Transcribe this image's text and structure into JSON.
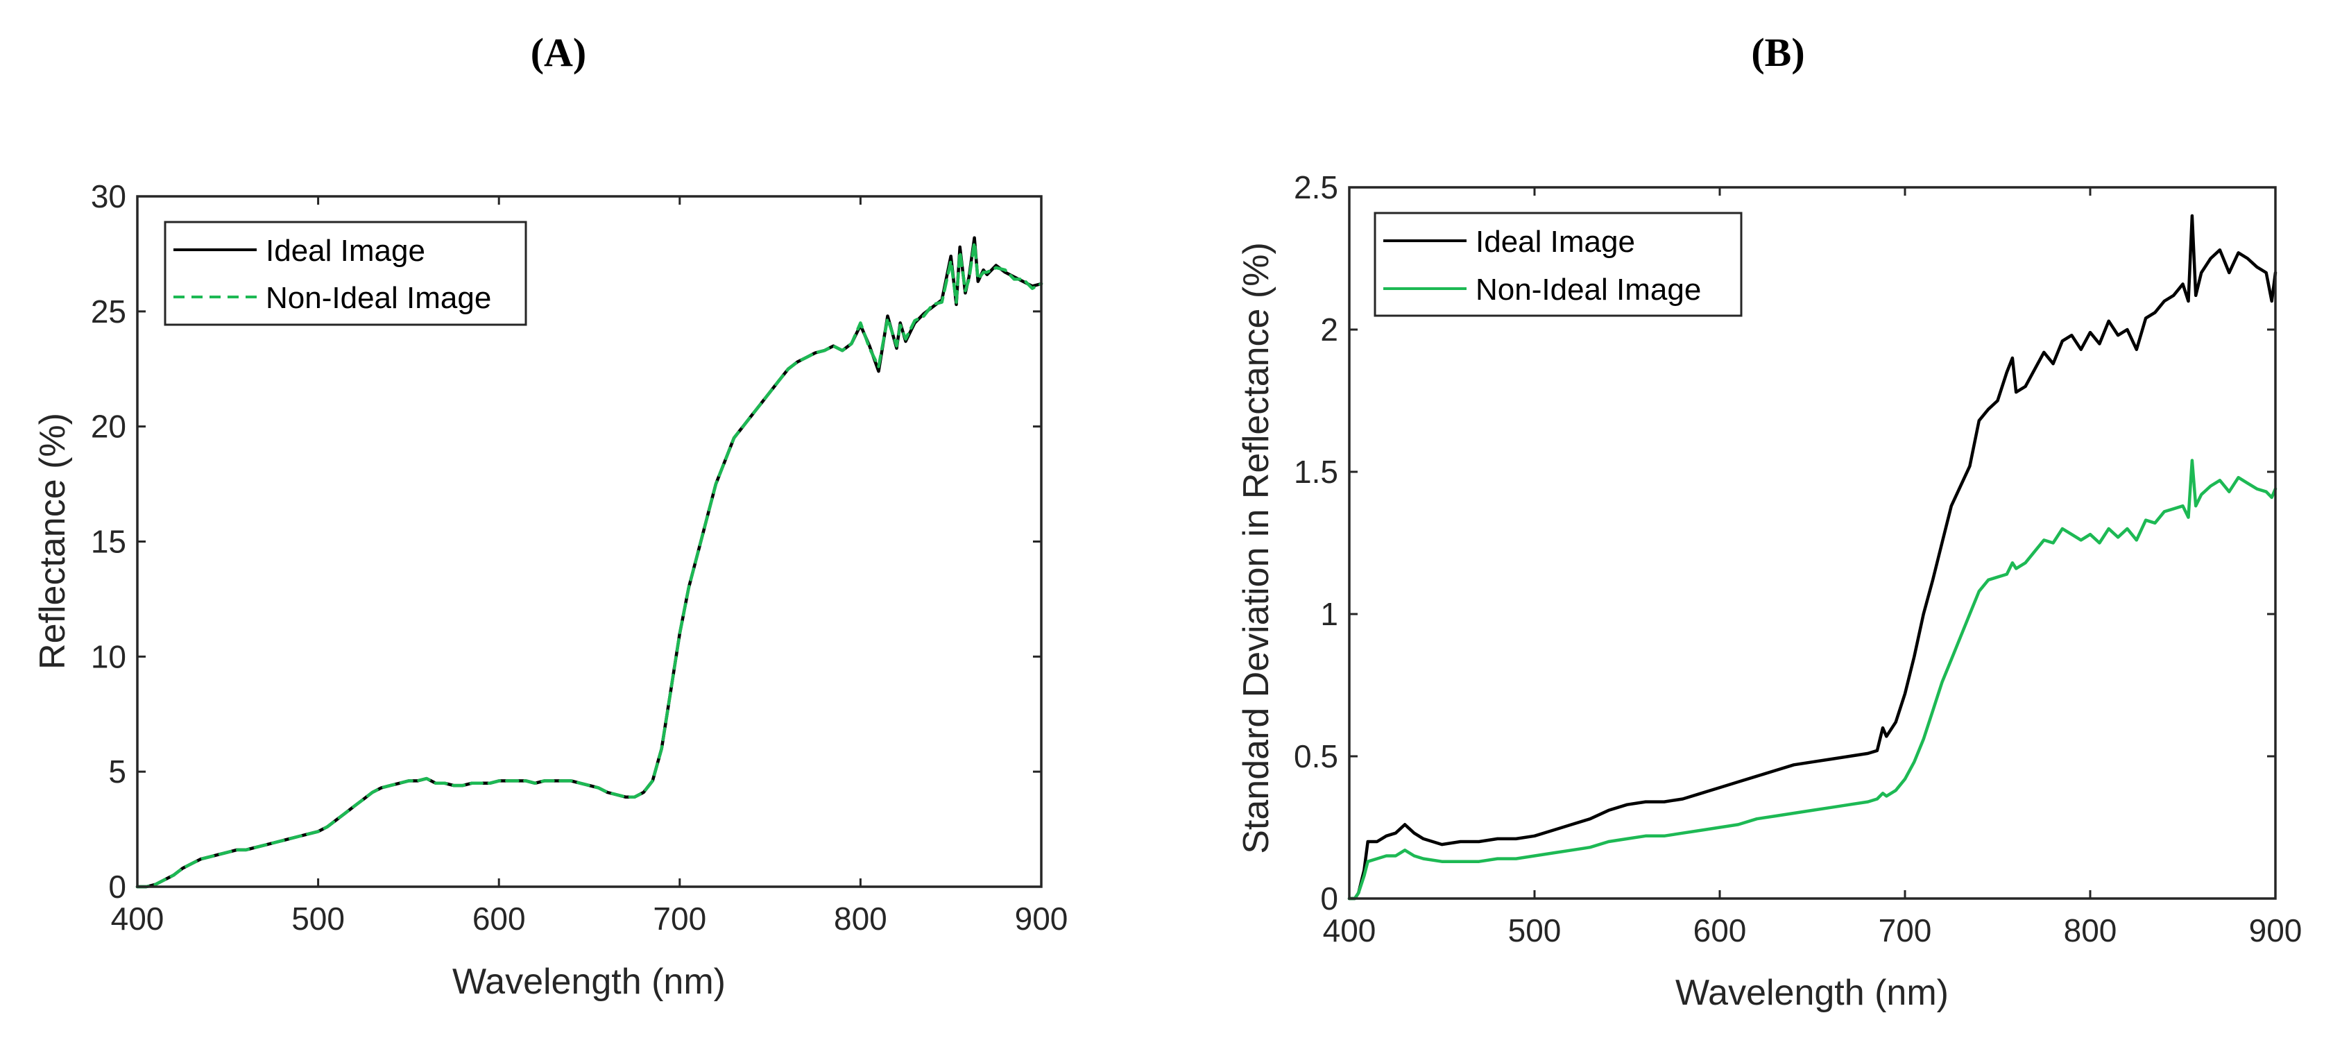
{
  "chart_data": [
    {
      "id": "A",
      "type": "line",
      "panel_label": "(A)",
      "title": "",
      "xlabel": "Wavelength (nm)",
      "ylabel": "Reflectance (%)",
      "xlim": [
        400,
        900
      ],
      "ylim": [
        0,
        30
      ],
      "xticks": [
        400,
        500,
        600,
        700,
        800,
        900
      ],
      "yticks": [
        0,
        5,
        10,
        15,
        20,
        25,
        30
      ],
      "xtick_labels": [
        "400",
        "500",
        "600",
        "700",
        "800",
        "900"
      ],
      "ytick_labels": [
        "0",
        "5",
        "10",
        "15",
        "20",
        "25",
        "30"
      ],
      "legend_position": "top-left",
      "x": [
        400,
        405,
        410,
        415,
        420,
        425,
        430,
        435,
        440,
        445,
        450,
        455,
        460,
        465,
        470,
        475,
        480,
        485,
        490,
        495,
        500,
        505,
        510,
        515,
        520,
        525,
        530,
        535,
        540,
        545,
        550,
        555,
        560,
        565,
        570,
        575,
        580,
        585,
        590,
        595,
        600,
        605,
        610,
        615,
        620,
        625,
        630,
        635,
        640,
        645,
        650,
        655,
        660,
        665,
        670,
        675,
        680,
        685,
        690,
        695,
        700,
        705,
        710,
        715,
        720,
        725,
        730,
        735,
        740,
        745,
        750,
        755,
        760,
        765,
        770,
        775,
        780,
        785,
        790,
        795,
        800,
        805,
        810,
        815,
        820,
        822,
        825,
        830,
        835,
        840,
        845,
        850,
        853,
        855,
        858,
        860,
        863,
        865,
        868,
        870,
        875,
        880,
        885,
        890,
        895,
        900
      ],
      "series": [
        {
          "name": "Ideal Image",
          "color": "#000000",
          "dash": "solid",
          "values": [
            0.0,
            0.0,
            0.1,
            0.3,
            0.5,
            0.8,
            1.0,
            1.2,
            1.3,
            1.4,
            1.5,
            1.6,
            1.6,
            1.7,
            1.8,
            1.9,
            2.0,
            2.1,
            2.2,
            2.3,
            2.4,
            2.6,
            2.9,
            3.2,
            3.5,
            3.8,
            4.1,
            4.3,
            4.4,
            4.5,
            4.6,
            4.6,
            4.7,
            4.5,
            4.5,
            4.4,
            4.4,
            4.5,
            4.5,
            4.5,
            4.6,
            4.6,
            4.6,
            4.6,
            4.5,
            4.6,
            4.6,
            4.6,
            4.6,
            4.5,
            4.4,
            4.3,
            4.1,
            4.0,
            3.9,
            3.9,
            4.1,
            4.6,
            6.0,
            8.5,
            11.0,
            13.0,
            14.5,
            16.0,
            17.5,
            18.5,
            19.5,
            20.0,
            20.5,
            21.0,
            21.5,
            22.0,
            22.5,
            22.8,
            23.0,
            23.2,
            23.3,
            23.5,
            23.3,
            23.6,
            24.4,
            23.5,
            22.4,
            24.8,
            23.4,
            24.5,
            23.7,
            24.5,
            24.9,
            25.2,
            25.5,
            27.4,
            25.3,
            27.8,
            25.8,
            26.5,
            28.2,
            26.3,
            26.8,
            26.6,
            27.0,
            26.7,
            26.5,
            26.3,
            26.1,
            26.2
          ]
        },
        {
          "name": "Non-Ideal Image",
          "color": "#1db954",
          "dash": "dashed",
          "values": [
            0.0,
            0.0,
            0.1,
            0.3,
            0.5,
            0.8,
            1.0,
            1.2,
            1.3,
            1.4,
            1.5,
            1.6,
            1.6,
            1.7,
            1.8,
            1.9,
            2.0,
            2.1,
            2.2,
            2.3,
            2.4,
            2.6,
            2.9,
            3.2,
            3.5,
            3.8,
            4.1,
            4.3,
            4.4,
            4.5,
            4.6,
            4.6,
            4.7,
            4.5,
            4.5,
            4.4,
            4.4,
            4.5,
            4.5,
            4.5,
            4.6,
            4.6,
            4.6,
            4.6,
            4.5,
            4.6,
            4.6,
            4.6,
            4.6,
            4.5,
            4.4,
            4.3,
            4.1,
            4.0,
            3.9,
            3.9,
            4.1,
            4.6,
            6.0,
            8.5,
            11.0,
            13.0,
            14.5,
            16.0,
            17.5,
            18.5,
            19.5,
            20.0,
            20.5,
            21.0,
            21.5,
            22.0,
            22.5,
            22.8,
            23.0,
            23.2,
            23.3,
            23.5,
            23.3,
            23.6,
            24.5,
            23.4,
            22.6,
            24.7,
            23.5,
            24.4,
            23.8,
            24.6,
            24.8,
            25.3,
            25.4,
            27.2,
            25.4,
            27.6,
            25.9,
            26.4,
            28.0,
            26.4,
            26.7,
            26.7,
            26.9,
            26.8,
            26.4,
            26.4,
            26.0,
            26.2
          ]
        }
      ]
    },
    {
      "id": "B",
      "type": "line",
      "panel_label": "(B)",
      "title": "",
      "xlabel": "Wavelength (nm)",
      "ylabel": "Standard Deviation in Reflectance (%)",
      "xlim": [
        400,
        900
      ],
      "ylim": [
        0,
        2.5
      ],
      "xticks": [
        400,
        500,
        600,
        700,
        800,
        900
      ],
      "yticks": [
        0,
        0.5,
        1,
        1.5,
        2,
        2.5
      ],
      "xtick_labels": [
        "400",
        "500",
        "600",
        "700",
        "800",
        "900"
      ],
      "ytick_labels": [
        "0",
        "0.5",
        "1",
        "1.5",
        "2",
        "2.5"
      ],
      "legend_position": "top-left",
      "x": [
        400,
        403,
        405,
        408,
        410,
        415,
        420,
        425,
        430,
        435,
        440,
        450,
        460,
        470,
        480,
        490,
        500,
        510,
        520,
        530,
        540,
        550,
        560,
        570,
        580,
        590,
        600,
        610,
        620,
        630,
        640,
        650,
        660,
        670,
        680,
        685,
        688,
        690,
        695,
        700,
        705,
        710,
        715,
        720,
        725,
        730,
        735,
        740,
        745,
        750,
        755,
        758,
        760,
        765,
        770,
        775,
        780,
        785,
        790,
        795,
        800,
        805,
        810,
        815,
        820,
        825,
        830,
        835,
        840,
        845,
        850,
        853,
        855,
        857,
        860,
        865,
        870,
        875,
        880,
        885,
        890,
        895,
        898,
        900
      ],
      "series": [
        {
          "name": "Ideal Image",
          "color": "#000000",
          "values": [
            0.0,
            0.0,
            0.02,
            0.1,
            0.2,
            0.2,
            0.22,
            0.23,
            0.26,
            0.23,
            0.21,
            0.19,
            0.2,
            0.2,
            0.21,
            0.21,
            0.22,
            0.24,
            0.26,
            0.28,
            0.31,
            0.33,
            0.34,
            0.34,
            0.35,
            0.37,
            0.39,
            0.41,
            0.43,
            0.45,
            0.47,
            0.48,
            0.49,
            0.5,
            0.51,
            0.52,
            0.6,
            0.57,
            0.62,
            0.72,
            0.85,
            1.0,
            1.12,
            1.25,
            1.38,
            1.45,
            1.52,
            1.68,
            1.72,
            1.75,
            1.85,
            1.9,
            1.78,
            1.8,
            1.86,
            1.92,
            1.88,
            1.96,
            1.98,
            1.93,
            1.99,
            1.95,
            2.03,
            1.98,
            2.0,
            1.93,
            2.04,
            2.06,
            2.1,
            2.12,
            2.16,
            2.1,
            2.4,
            2.12,
            2.2,
            2.25,
            2.28,
            2.2,
            2.27,
            2.25,
            2.22,
            2.2,
            2.1,
            2.2
          ]
        },
        {
          "name": "Non-Ideal Image",
          "color": "#1db954",
          "values": [
            0.0,
            0.0,
            0.02,
            0.08,
            0.13,
            0.14,
            0.15,
            0.15,
            0.17,
            0.15,
            0.14,
            0.13,
            0.13,
            0.13,
            0.14,
            0.14,
            0.15,
            0.16,
            0.17,
            0.18,
            0.2,
            0.21,
            0.22,
            0.22,
            0.23,
            0.24,
            0.25,
            0.26,
            0.28,
            0.29,
            0.3,
            0.31,
            0.32,
            0.33,
            0.34,
            0.35,
            0.37,
            0.36,
            0.38,
            0.42,
            0.48,
            0.56,
            0.66,
            0.76,
            0.84,
            0.92,
            1.0,
            1.08,
            1.12,
            1.13,
            1.14,
            1.18,
            1.16,
            1.18,
            1.22,
            1.26,
            1.25,
            1.3,
            1.28,
            1.26,
            1.28,
            1.25,
            1.3,
            1.27,
            1.3,
            1.26,
            1.33,
            1.32,
            1.36,
            1.37,
            1.38,
            1.34,
            1.54,
            1.38,
            1.42,
            1.45,
            1.47,
            1.43,
            1.48,
            1.46,
            1.44,
            1.43,
            1.41,
            1.44
          ]
        }
      ]
    }
  ]
}
